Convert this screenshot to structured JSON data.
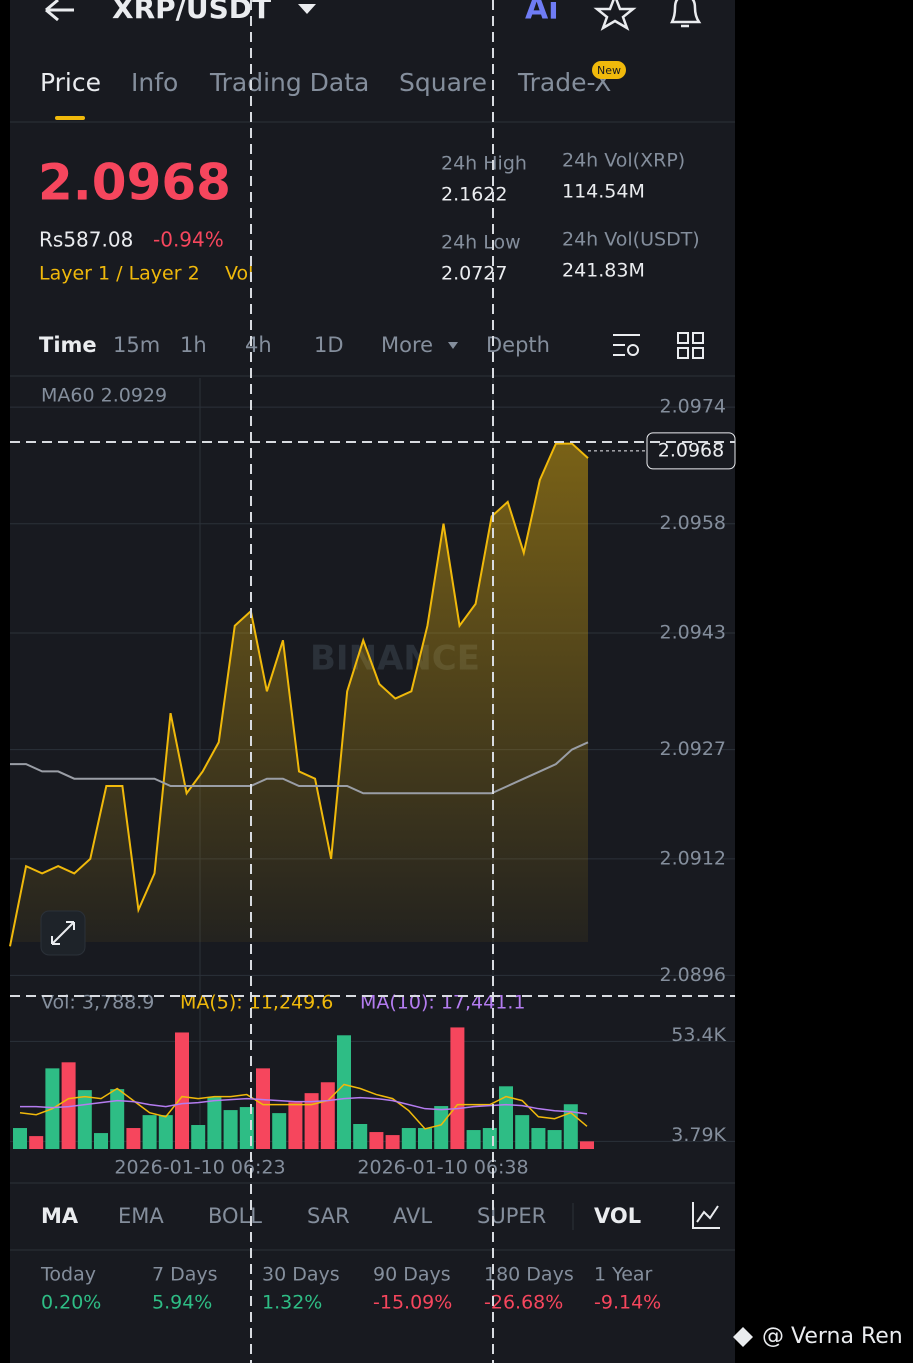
{
  "header": {
    "title": "XRP/USDT"
  },
  "tabs": [
    "Price",
    "Info",
    "Trading Data",
    "Square",
    "Trade-X"
  ],
  "new_badge": "New",
  "price": {
    "last": "2.0968",
    "fiat": "Rs587.08",
    "change": "-0.94%",
    "tags": "Layer 1 / Layer 2",
    "tag2": "Vol"
  },
  "stats": [
    {
      "label": "24h High",
      "value": "2.1622"
    },
    {
      "label": "24h Low",
      "value": "2.0727"
    },
    {
      "label": "24h Vol(XRP)",
      "value": "114.54M"
    },
    {
      "label": "24h Vol(USDT)",
      "value": "241.83M"
    }
  ],
  "intervals": [
    "Time",
    "15m",
    "1h",
    "4h",
    "1D",
    "More",
    "Depth"
  ],
  "chart_data": [
    {
      "type": "line",
      "legend_text": "MA60 2.0929",
      "watermark": "BINANCE",
      "ylim": [
        2.0894,
        2.0978
      ],
      "yticks": [
        2.0974,
        2.0958,
        2.0943,
        2.0927,
        2.0912,
        2.0896
      ],
      "current_price": 2.0968,
      "series": [
        {
          "name": "Price",
          "color": "#f0b90b",
          "values": [
            2.09,
            2.0911,
            2.091,
            2.0911,
            2.091,
            2.0912,
            2.0922,
            2.0922,
            2.0905,
            2.091,
            2.0932,
            2.0921,
            2.0924,
            2.0928,
            2.0944,
            2.0946,
            2.0935,
            2.0942,
            2.0924,
            2.0923,
            2.0912,
            2.0935,
            2.0942,
            2.0936,
            2.0934,
            2.0935,
            2.0944,
            2.0958,
            2.0944,
            2.0947,
            2.0959,
            2.0961,
            2.0954,
            2.0964,
            2.0969,
            2.0969,
            2.0967
          ]
        },
        {
          "name": "MA60",
          "color": "#9a9ea6",
          "values": [
            2.0925,
            2.0925,
            2.0924,
            2.0924,
            2.0923,
            2.0923,
            2.0923,
            2.0923,
            2.0923,
            2.0923,
            2.0922,
            2.0922,
            2.0922,
            2.0922,
            2.0922,
            2.0922,
            2.0923,
            2.0923,
            2.0922,
            2.0922,
            2.0922,
            2.0922,
            2.0921,
            2.0921,
            2.0921,
            2.0921,
            2.0921,
            2.0921,
            2.0921,
            2.0921,
            2.0921,
            2.0922,
            2.0923,
            2.0924,
            2.0925,
            2.0927,
            2.0928
          ]
        }
      ]
    },
    {
      "type": "bar",
      "legend": [
        "Vol: 3,788.9",
        "MA(5): 11,249.6",
        "MA(10): 17,441.1"
      ],
      "ylim": [
        0,
        62000
      ],
      "yticks": [
        {
          "value": 53400,
          "label": "53.4K"
        },
        {
          "value": 3790,
          "label": "3.79K"
        }
      ],
      "time_labels": [
        "2026-01-10 06:23",
        "2026-01-10 06:38"
      ],
      "values": [
        10400,
        6400,
        40000,
        43000,
        29200,
        7900,
        29700,
        10400,
        16800,
        16800,
        57800,
        11900,
        25700,
        19300,
        20800,
        40000,
        17800,
        23200,
        27700,
        33100,
        56400,
        12400,
        8400,
        6900,
        10400,
        10400,
        21300,
        60300,
        9400,
        10400,
        31100,
        16800,
        10400,
        9400,
        22200,
        3789
      ],
      "colors": [
        "#2ebd85",
        "#f6465d",
        "#2ebd85",
        "#f6465d",
        "#2ebd85",
        "#2ebd85",
        "#2ebd85",
        "#f6465d",
        "#2ebd85",
        "#2ebd85",
        "#f6465d",
        "#2ebd85",
        "#2ebd85",
        "#2ebd85",
        "#2ebd85",
        "#f6465d",
        "#2ebd85",
        "#f6465d",
        "#f6465d",
        "#f6465d",
        "#2ebd85",
        "#2ebd85",
        "#f6465d",
        "#f6465d",
        "#2ebd85",
        "#2ebd85",
        "#2ebd85",
        "#f6465d",
        "#2ebd85",
        "#2ebd85",
        "#2ebd85",
        "#2ebd85",
        "#2ebd85",
        "#2ebd85",
        "#2ebd85",
        "#f6465d"
      ],
      "series": [
        {
          "name": "MA(5)",
          "color": "#f0b90b",
          "values": [
            18000,
            17000,
            20000,
            25000,
            26000,
            25000,
            30000,
            24000,
            18000,
            16000,
            26000,
            25000,
            26000,
            26000,
            27000,
            22000,
            22000,
            22000,
            22000,
            24000,
            32000,
            30000,
            27000,
            25000,
            19000,
            10000,
            12000,
            22000,
            22000,
            22000,
            26000,
            24000,
            16000,
            15000,
            18000,
            11250
          ]
        },
        {
          "name": "MA(10)",
          "color": "#b47cf0",
          "values": [
            21000,
            21000,
            20500,
            21000,
            22000,
            23000,
            24000,
            23500,
            22000,
            21000,
            22500,
            23000,
            24000,
            24500,
            25000,
            24500,
            24000,
            23500,
            23500,
            24000,
            25000,
            25500,
            25000,
            24000,
            22000,
            20000,
            19500,
            20000,
            21000,
            21500,
            22000,
            21500,
            20000,
            19000,
            18500,
            17441
          ]
        }
      ]
    }
  ],
  "indicators": [
    "MA",
    "EMA",
    "BOLL",
    "SAR",
    "AVL",
    "SUPER",
    "VOL"
  ],
  "performance": [
    {
      "label": "Today",
      "value": "0.20%"
    },
    {
      "label": "7 Days",
      "value": "5.94%"
    },
    {
      "label": "30 Days",
      "value": "1.32%"
    },
    {
      "label": "90 Days",
      "value": "-15.09%"
    },
    {
      "label": "180 Days",
      "value": "-26.68%"
    },
    {
      "label": "1 Year",
      "value": "-9.14%"
    }
  ],
  "watermark": "@ Verna Ren"
}
